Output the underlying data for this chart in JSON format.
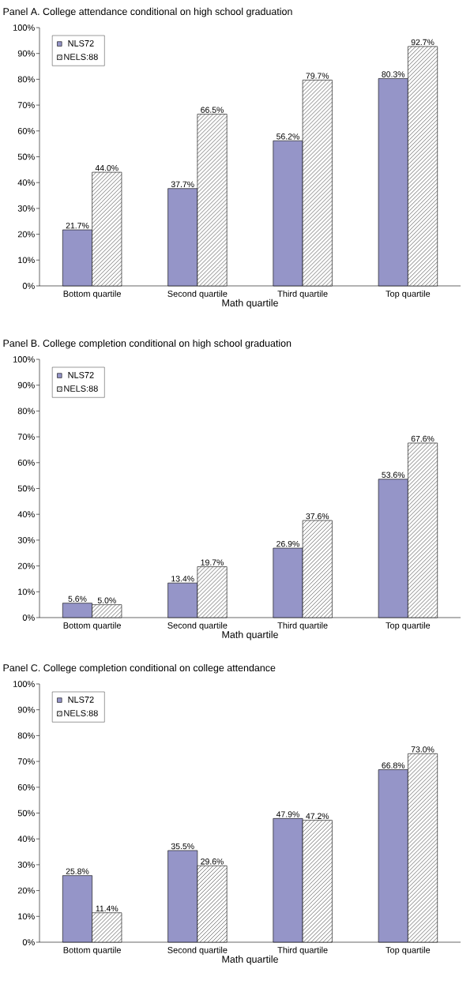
{
  "chart_data": [
    {
      "type": "bar",
      "title": "Panel A. College attendance conditional on high school graduation",
      "xlabel": "Math quartile",
      "categories": [
        "Bottom quartile",
        "Second quartile",
        "Third quartile",
        "Top quartile"
      ],
      "ylim": [
        0,
        100
      ],
      "yticks": [
        {
          "value": 0,
          "label": "0%"
        },
        {
          "value": 10,
          "label": "10%"
        },
        {
          "value": 20,
          "label": "20%"
        },
        {
          "value": 30,
          "label": "30%"
        },
        {
          "value": 40,
          "label": "40%"
        },
        {
          "value": 50,
          "label": "50%"
        },
        {
          "value": 60,
          "label": "60%"
        },
        {
          "value": 70,
          "label": "70%"
        },
        {
          "value": 80,
          "label": "80%"
        },
        {
          "value": 90,
          "label": "90%"
        },
        {
          "value": 100,
          "label": "100%"
        }
      ],
      "legend": "top left",
      "series": [
        {
          "name": "NLS72",
          "color": "#9595c8",
          "values": [
            21.7,
            37.7,
            56.2,
            80.3
          ],
          "value_labels": [
            "21.7%",
            "37.7%",
            "56.2%",
            "80.3%"
          ]
        },
        {
          "name": "NELS:88",
          "color": "#ffffff",
          "values": [
            44.0,
            66.5,
            79.7,
            92.7
          ],
          "value_labels": [
            "44.0%",
            "66.5%",
            "79.7%",
            "92.7%"
          ]
        }
      ]
    },
    {
      "type": "bar",
      "title": "Panel B. College completion conditional on high school graduation",
      "xlabel": "Math quartile",
      "categories": [
        "Bottom quartile",
        "Second quartile",
        "Third quartile",
        "Top quartile"
      ],
      "ylim": [
        0,
        100
      ],
      "yticks": [
        {
          "value": 0,
          "label": "0%"
        },
        {
          "value": 10,
          "label": "10%"
        },
        {
          "value": 20,
          "label": "20%"
        },
        {
          "value": 30,
          "label": "30%"
        },
        {
          "value": 40,
          "label": "40%"
        },
        {
          "value": 50,
          "label": "50%"
        },
        {
          "value": 60,
          "label": "60%"
        },
        {
          "value": 70,
          "label": "70%"
        },
        {
          "value": 80,
          "label": "80%"
        },
        {
          "value": 90,
          "label": "90%"
        },
        {
          "value": 100,
          "label": "100%"
        }
      ],
      "legend": "top left",
      "series": [
        {
          "name": "NLS72",
          "color": "#9595c8",
          "values": [
            5.6,
            13.4,
            26.9,
            53.6
          ],
          "value_labels": [
            "5.6%",
            "13.4%",
            "26.9%",
            "53.6%"
          ]
        },
        {
          "name": "NELS:88",
          "color": "#ffffff",
          "values": [
            5.0,
            19.7,
            37.6,
            67.6
          ],
          "value_labels": [
            "5.0%",
            "19.7%",
            "37.6%",
            "67.6%"
          ]
        }
      ]
    },
    {
      "type": "bar",
      "title": "Panel C. College completion conditional on college attendance",
      "xlabel": "Math quartile",
      "categories": [
        "Bottom quartile",
        "Second quartile",
        "Third quartile",
        "Top quartile"
      ],
      "ylim": [
        0,
        100
      ],
      "yticks": [
        {
          "value": 0,
          "label": "0%"
        },
        {
          "value": 10,
          "label": "10%"
        },
        {
          "value": 20,
          "label": "20%"
        },
        {
          "value": 30,
          "label": "30%"
        },
        {
          "value": 40,
          "label": "40%"
        },
        {
          "value": 50,
          "label": "50%"
        },
        {
          "value": 60,
          "label": "60%"
        },
        {
          "value": 70,
          "label": "70%"
        },
        {
          "value": 80,
          "label": "80%"
        },
        {
          "value": 90,
          "label": "90%"
        },
        {
          "value": 100,
          "label": "100%"
        }
      ],
      "legend": "top left",
      "series": [
        {
          "name": "NLS72",
          "color": "#9595c8",
          "values": [
            25.8,
            35.5,
            47.9,
            66.8
          ],
          "value_labels": [
            "25.8%",
            "35.5%",
            "47.9%",
            "66.8%"
          ]
        },
        {
          "name": "NELS:88",
          "color": "#ffffff",
          "values": [
            11.4,
            29.6,
            47.2,
            73.0
          ],
          "value_labels": [
            "11.4%",
            "29.6%",
            "47.2%",
            "73.0%"
          ]
        }
      ]
    }
  ]
}
